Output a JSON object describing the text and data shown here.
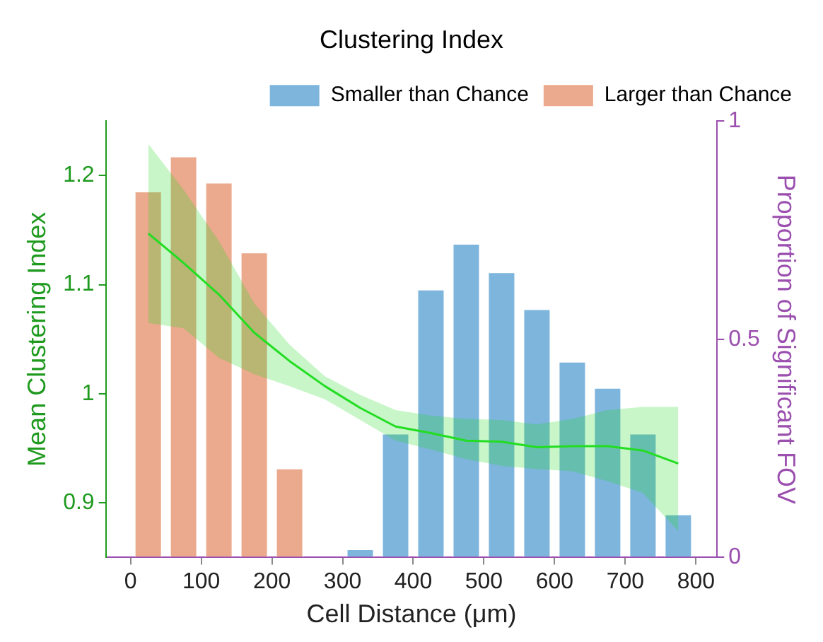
{
  "chart_data": {
    "type": "bar",
    "title": "Clustering Index",
    "xlabel": "Cell Distance (μm)",
    "ylabel": "Mean Clustering Index",
    "y2label": "Proportion of Significant FOV",
    "x": [
      25,
      75,
      125,
      175,
      225,
      275,
      325,
      375,
      425,
      475,
      525,
      575,
      625,
      675,
      725,
      775
    ],
    "series": [
      {
        "name": "Smaller than Chance",
        "axis": "y2",
        "color": "#7db5dd",
        "values": [
          null,
          null,
          null,
          null,
          null,
          null,
          0.02,
          0.285,
          0.615,
          0.72,
          0.655,
          0.57,
          0.45,
          0.39,
          0.285,
          0.1
        ]
      },
      {
        "name": "Larger than Chance",
        "axis": "y2",
        "color": "#eba98d",
        "values": [
          0.84,
          0.92,
          0.86,
          0.7,
          0.205,
          null,
          null,
          null,
          null,
          null,
          null,
          null,
          null,
          null,
          null,
          null
        ]
      },
      {
        "type": "line",
        "color": "#22dd22",
        "values": [
          1.147,
          1.12,
          1.091,
          1.056,
          1.03,
          1.007,
          0.987,
          0.97,
          0.964,
          0.957,
          0.956,
          0.951,
          0.952,
          0.952,
          0.948,
          0.936
        ],
        "lower": [
          1.065,
          1.06,
          1.033,
          1.018,
          1.007,
          0.995,
          0.976,
          0.957,
          0.949,
          0.94,
          0.934,
          0.931,
          0.929,
          0.92,
          0.909,
          0.874
        ],
        "upper": [
          1.229,
          1.187,
          1.14,
          1.083,
          1.045,
          1.016,
          0.999,
          0.985,
          0.98,
          0.977,
          0.976,
          0.972,
          0.977,
          0.985,
          0.988,
          0.988
        ]
      }
    ],
    "xlim": [
      -35,
      830
    ],
    "xticks": [
      0,
      100,
      200,
      300,
      400,
      500,
      600,
      700,
      800
    ],
    "ylim": [
      0.85,
      1.25
    ],
    "yticks": [
      0.9,
      1,
      1.1,
      1.2
    ],
    "y2lim": [
      0,
      1
    ],
    "y2ticks": [
      0,
      0.5,
      1
    ],
    "legend": "top right",
    "grid": false,
    "marker": "none",
    "line_style": "solid"
  }
}
